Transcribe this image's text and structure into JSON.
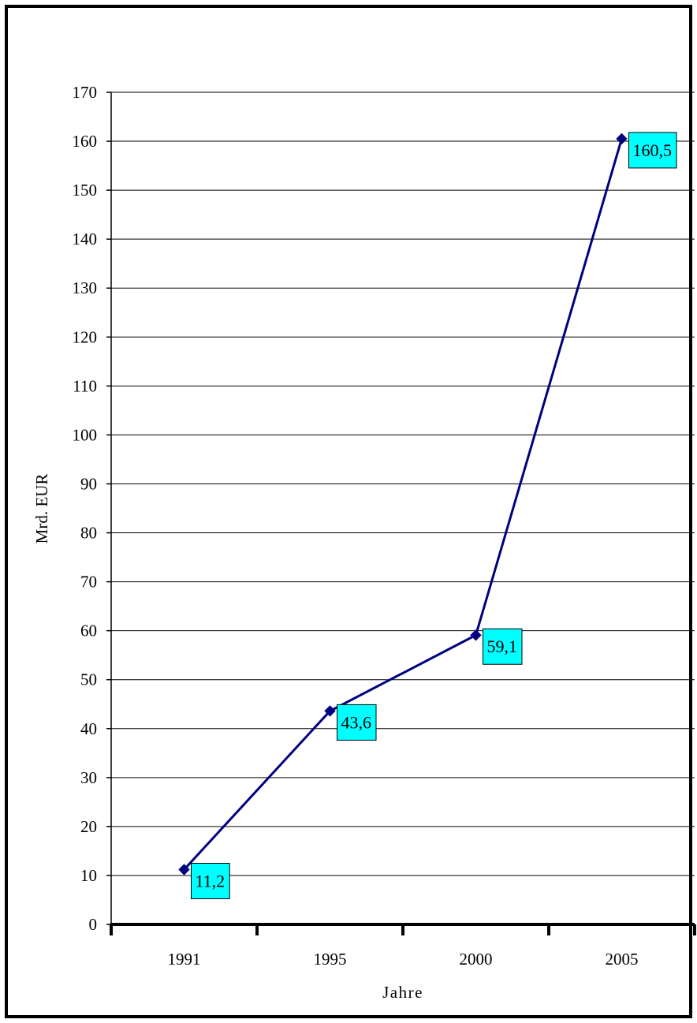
{
  "chart_data": {
    "type": "line",
    "title": "",
    "xlabel": "Jahre",
    "ylabel": "Mrd. EUR",
    "categories": [
      "1991",
      "1995",
      "2000",
      "2005"
    ],
    "series": [
      {
        "values": [
          11.2,
          43.6,
          59.1,
          160.5
        ]
      }
    ],
    "data_labels": [
      "11,2",
      "43,6",
      "59,1",
      "160,5"
    ],
    "ylim": [
      0,
      170
    ],
    "yticks": [
      0,
      10,
      20,
      30,
      40,
      50,
      60,
      70,
      80,
      90,
      100,
      110,
      120,
      130,
      140,
      150,
      160,
      170
    ],
    "grid": true,
    "legend": "none",
    "colors": {
      "line": "#000080",
      "marker": "#000080",
      "label_fill": "#00ffff",
      "label_border": "#000000",
      "gridline": "#000000"
    }
  }
}
